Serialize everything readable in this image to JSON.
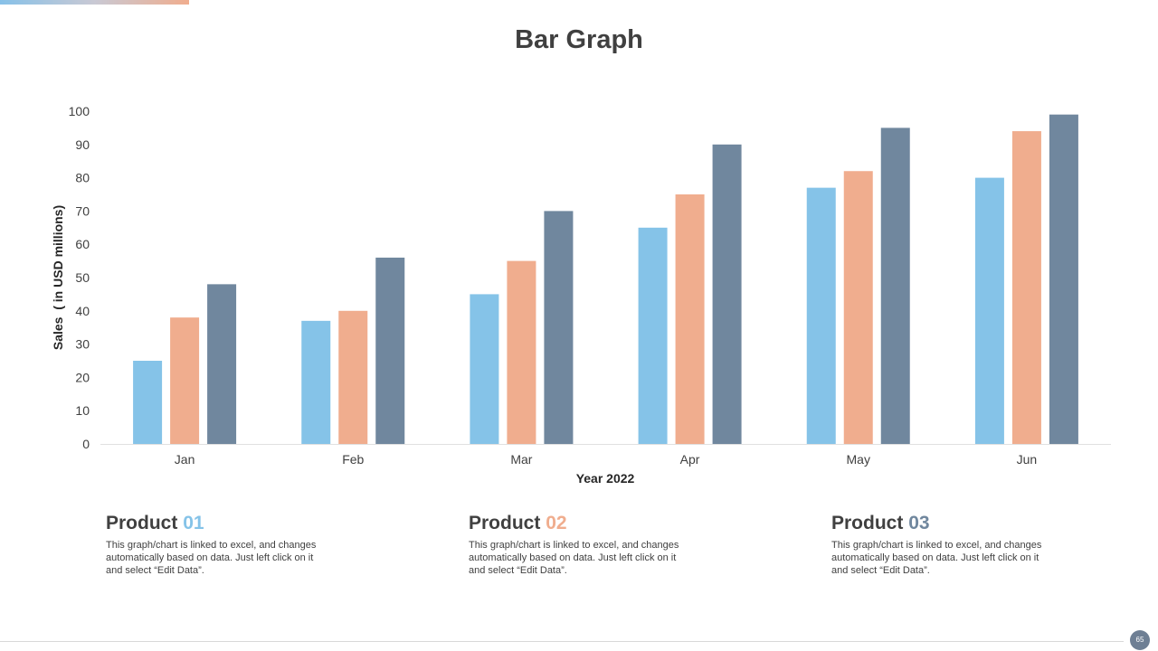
{
  "slide": {
    "title": "Bar Graph",
    "page_number": "65"
  },
  "colors": {
    "product_01": "#85c3e8",
    "product_02": "#f0ad8e",
    "product_03": "#70879e",
    "text": "#404040"
  },
  "products": [
    {
      "label": "Product",
      "number": "01",
      "description": "This graph/chart is linked to excel, and changes automatically based on data. Just left click on it and select “Edit Data”."
    },
    {
      "label": "Product",
      "number": "02",
      "description": "This graph/chart is linked to excel, and changes automatically based on data. Just left click on it and select “Edit Data”."
    },
    {
      "label": "Product",
      "number": "03",
      "description": "This graph/chart is linked to excel, and changes automatically based on data. Just left click on it and select “Edit Data”."
    }
  ],
  "chart_data": {
    "type": "bar",
    "title": "Bar Graph",
    "xlabel": "Year 2022",
    "ylabel": "Sales  ( in USD millions)",
    "categories": [
      "Jan",
      "Feb",
      "Mar",
      "Apr",
      "May",
      "Jun"
    ],
    "series": [
      {
        "name": "Product 01",
        "values": [
          25,
          37,
          45,
          65,
          77,
          80
        ]
      },
      {
        "name": "Product 02",
        "values": [
          38,
          40,
          55,
          75,
          82,
          94
        ]
      },
      {
        "name": "Product 03",
        "values": [
          48,
          56,
          70,
          90,
          95,
          99
        ]
      }
    ],
    "ylim": [
      0,
      100
    ],
    "yticks": [
      0,
      10,
      20,
      30,
      40,
      50,
      60,
      70,
      80,
      90,
      100
    ],
    "grid": false,
    "legend": "none"
  }
}
